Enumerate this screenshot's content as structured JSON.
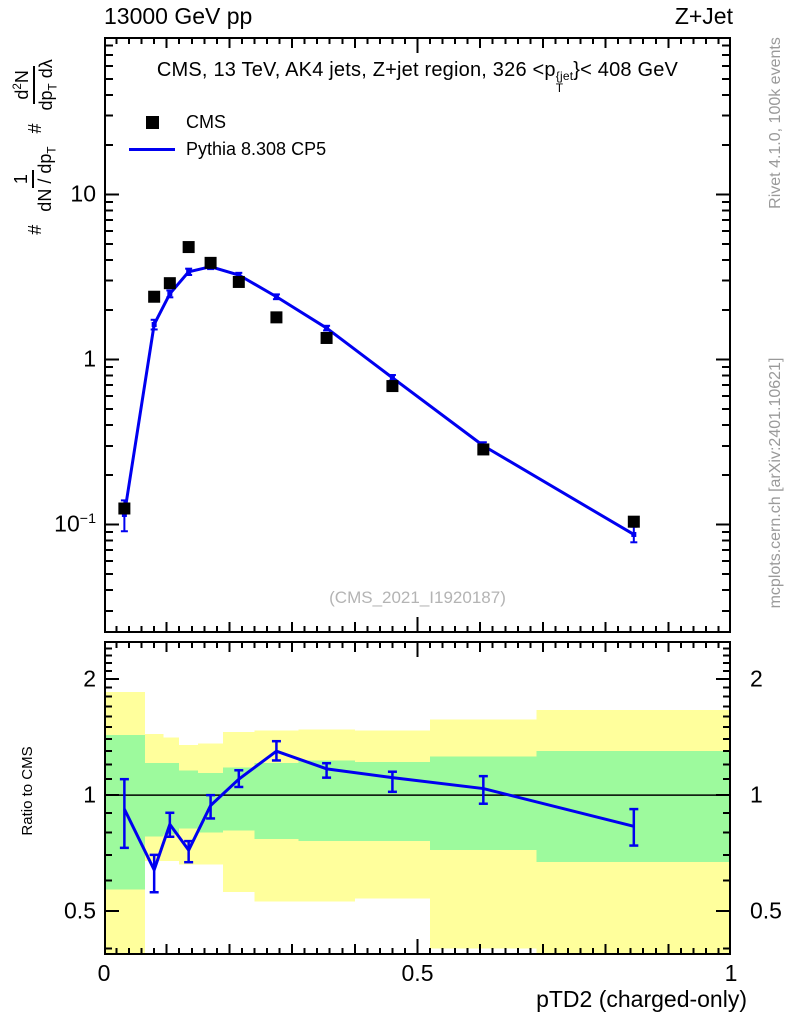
{
  "header": {
    "left": "13000 GeV pp",
    "right": "Z+Jet"
  },
  "main_title": {
    "a": "CMS, 13 TeV, AK4 jets, Z+jet region, 326 <p",
    "sup": "{jet",
    "sub": "T",
    "b": "}< 408 GeV"
  },
  "legend": {
    "items": [
      {
        "label": "CMS",
        "marker": "black-filled-square"
      },
      {
        "label": "Pythia 8.308 CP5",
        "marker": "blue-line"
      }
    ]
  },
  "yaxis_title": {
    "hash_a": "#",
    "f1_num": "1",
    "f1_den_a": "dN / dp",
    "f1_den_sub": "T",
    "hash_b": "#",
    "f2_num_a": "d",
    "f2_num_sup": "2",
    "f2_num_b": "N",
    "f2_den_a": "dp",
    "f2_den_sub": "T",
    "f2_den_b": " dλ"
  },
  "watermark": "(CMS_2021_I1920187)",
  "side_notes": {
    "top_right": "Rivet 4.1.0,  100k events",
    "bottom_right": "mcplots.cern.ch [arXiv:2401.10621]"
  },
  "colors": {
    "data": "#000000",
    "mc": "#0000f0",
    "band_green": "#9dfa9d",
    "band_yellow": "#ffff9c",
    "note_gray": "#9a9a9a",
    "watermark_gray": "#b4b4b4"
  },
  "chart_data": {
    "type": "line",
    "title": "CMS, 13 TeV, AK4 jets, Z+jet region, 326 < pT{jet} < 408 GeV",
    "xlabel": "pTD2 (charged-only)",
    "ylabel": "# 1/(dN/dpT)  # d2N/(dpT dλ)",
    "xlim": [
      0,
      1
    ],
    "ylim": [
      0.022,
      90
    ],
    "yscale": "log",
    "grid": false,
    "legend_position": "top-left-inside",
    "x_tick_labels": [
      {
        "v": 0,
        "t": "0"
      },
      {
        "v": 0.5,
        "t": "0.5"
      },
      {
        "v": 1,
        "t": "1"
      }
    ],
    "y_tick_labels": [
      {
        "v": 10,
        "t": "10"
      },
      {
        "v": 1,
        "t": "1"
      },
      {
        "v": 0.1,
        "t": "10",
        "sup": "−1"
      }
    ],
    "x": [
      0.0325,
      0.08,
      0.105,
      0.135,
      0.17,
      0.215,
      0.275,
      0.355,
      0.46,
      0.605,
      0.845
    ],
    "series": [
      {
        "name": "CMS",
        "type": "points",
        "marker": "filled-square",
        "y": [
          0.125,
          2.4,
          2.9,
          4.8,
          3.85,
          2.95,
          1.8,
          1.35,
          0.69,
          0.285,
          0.104
        ]
      },
      {
        "name": "Pythia 8.308 CP5",
        "type": "line-with-errors",
        "y": [
          0.115,
          1.63,
          2.5,
          3.4,
          3.65,
          3.25,
          2.4,
          1.55,
          0.775,
          0.3,
          0.087
        ],
        "yerr_lo": [
          0.024,
          0.11,
          0.12,
          0.15,
          0.12,
          0.1,
          0.08,
          0.05,
          0.03,
          0.015,
          0.009
        ],
        "yerr_hi": [
          0.025,
          0.11,
          0.12,
          0.15,
          0.12,
          0.1,
          0.08,
          0.05,
          0.03,
          0.015,
          0.01
        ]
      }
    ],
    "ratio": {
      "ylabel": "Ratio to CMS",
      "ylim": [
        0.385,
        2.51
      ],
      "yscale": "log",
      "reference_line": 1,
      "y_tick_labels": [
        {
          "v": 2,
          "t": "2"
        },
        {
          "v": 1,
          "t": "1"
        },
        {
          "v": 0.5,
          "t": "0.5"
        }
      ],
      "y": [
        0.92,
        0.64,
        0.84,
        0.72,
        0.94,
        1.1,
        1.3,
        1.17,
        1.11,
        1.04,
        0.83
      ],
      "yerr_lo": [
        0.19,
        0.08,
        0.06,
        0.05,
        0.07,
        0.05,
        0.07,
        0.06,
        0.09,
        0.09,
        0.09
      ],
      "yerr_hi": [
        0.18,
        0.06,
        0.06,
        0.04,
        0.06,
        0.06,
        0.08,
        0.04,
        0.04,
        0.08,
        0.09
      ],
      "bands": {
        "edges": [
          0,
          0.065,
          0.095,
          0.12,
          0.15,
          0.19,
          0.24,
          0.31,
          0.4,
          0.52,
          0.69,
          1.0
        ],
        "yellow_hi": [
          1.85,
          1.44,
          1.41,
          1.35,
          1.36,
          1.46,
          1.47,
          1.48,
          1.47,
          1.57,
          1.66
        ],
        "green_hi": [
          1.43,
          1.21,
          1.21,
          1.16,
          1.14,
          1.18,
          1.21,
          1.23,
          1.22,
          1.26,
          1.3
        ],
        "green_lo": [
          0.57,
          0.78,
          0.79,
          0.82,
          0.8,
          0.81,
          0.77,
          0.76,
          0.76,
          0.72,
          0.67
        ],
        "yellow_lo": [
          0.3,
          0.675,
          0.675,
          0.66,
          0.66,
          0.56,
          0.53,
          0.53,
          0.54,
          0.4,
          0.39
        ]
      }
    }
  }
}
